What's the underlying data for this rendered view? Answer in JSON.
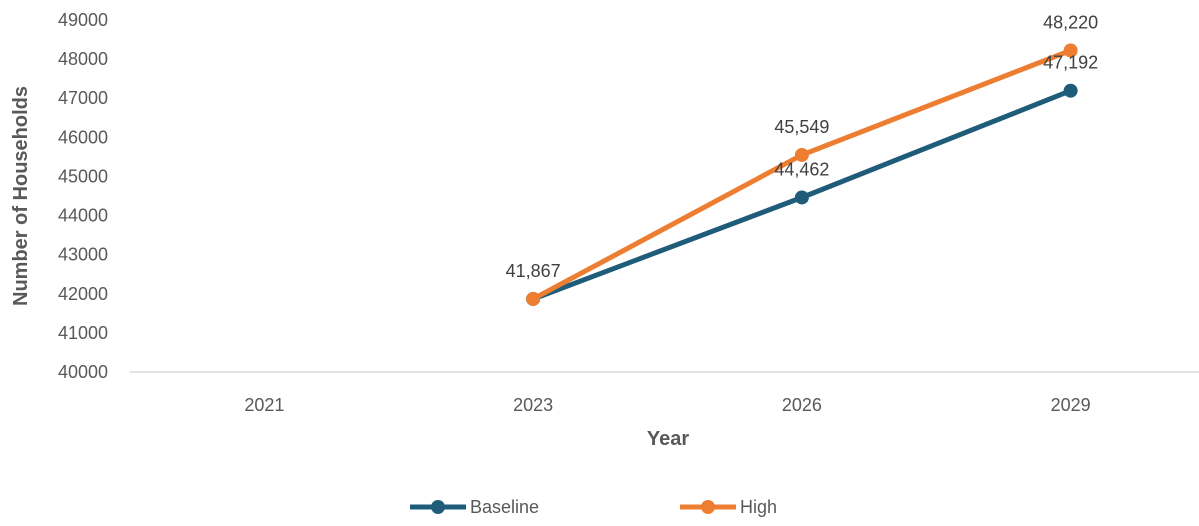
{
  "chart_data": {
    "type": "line",
    "categories": [
      "2021",
      "2023",
      "2026",
      "2029"
    ],
    "series": [
      {
        "name": "Baseline",
        "color": "#1f5c7a",
        "values": [
          null,
          41867,
          44462,
          47192
        ],
        "labels": [
          null,
          "41,867",
          "44,462",
          "47,192"
        ]
      },
      {
        "name": "High",
        "color": "#ed7d31",
        "values": [
          null,
          41867,
          45549,
          48220
        ],
        "labels": [
          null,
          "",
          "45,549",
          "48,220"
        ]
      }
    ],
    "xlabel": "Year",
    "ylabel": "Number of Households",
    "ylim": [
      40000,
      49000
    ],
    "yticks": [
      "40000",
      "41000",
      "42000",
      "43000",
      "44000",
      "45000",
      "46000",
      "47000",
      "48000",
      "49000"
    ],
    "grid": false,
    "legend": "bottom",
    "axis_color": "#d9d9d9"
  }
}
